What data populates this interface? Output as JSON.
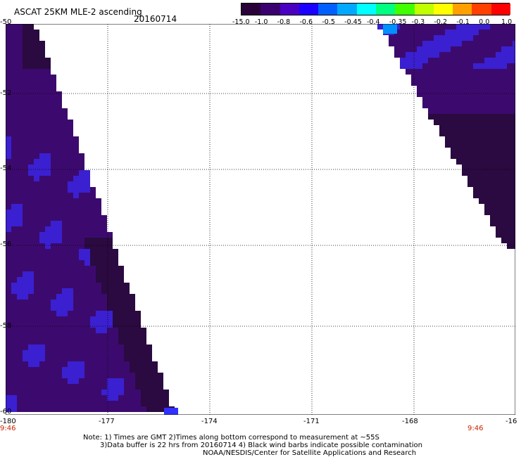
{
  "header": {
    "title": "ASCAT 25KM MLE-2 ascending",
    "date": "20160714"
  },
  "colorbar": {
    "tick_labels": [
      "-15.0",
      "-1.0",
      "-0.8",
      "-0.6",
      "-0.5",
      "-0.45",
      "-0.4",
      "-0.35",
      "-0.3",
      "-0.2",
      "-0.1",
      "0.0",
      "1.0"
    ],
    "colors": [
      "#2a0038",
      "#3a0070",
      "#4a00c0",
      "#1a00ff",
      "#0060ff",
      "#00a8ff",
      "#00ffff",
      "#00ff80",
      "#40ff00",
      "#c0ff00",
      "#ffff00",
      "#ffa000",
      "#ff4000",
      "#ff0000"
    ]
  },
  "map": {
    "lat_labels": [
      "-50",
      "-52",
      "-54",
      "-56",
      "-58",
      "-60"
    ],
    "lon_labels": [
      "-180",
      "-177",
      "-174",
      "-171",
      "-168",
      "-16"
    ],
    "time_labels": [
      "9:46",
      "9:46"
    ],
    "swath_color_main": "#3c0a6e",
    "swath_color_dark": "#2a0a40",
    "swath_color_blue": "#3a20d0"
  },
  "footer": {
    "note_line1": "Note: 1) Times are GMT 2)Times along bottom correspond to measurement at ~55S",
    "note_line2": "3)Data buffer is 22 hrs from 20160714 4) Black wind barbs indicate possible contamination",
    "note_line3": "NOAA/NESDIS/Center for Satellite Applications and Research"
  }
}
